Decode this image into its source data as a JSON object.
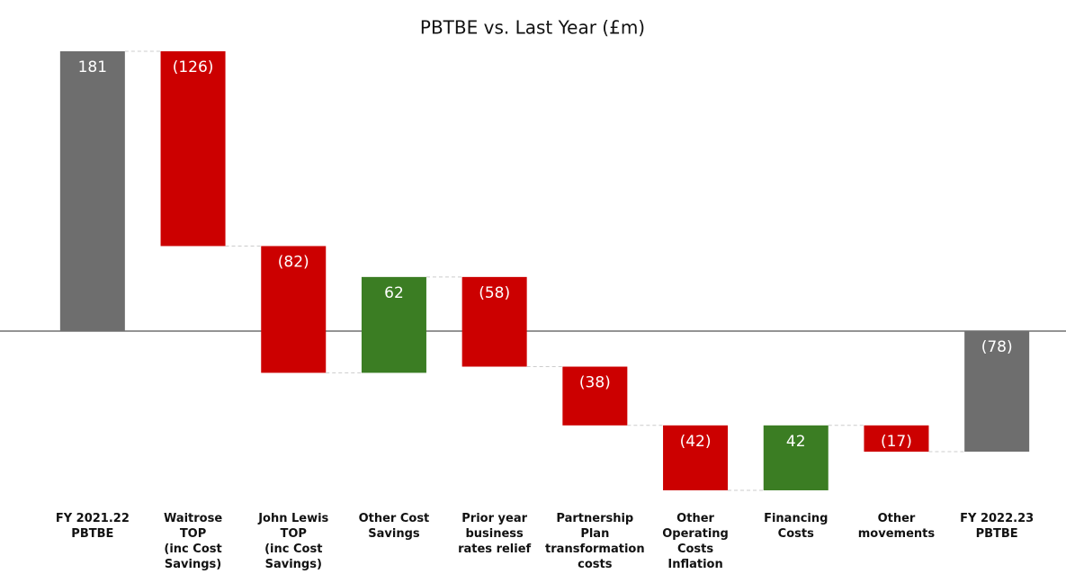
{
  "chart_data": {
    "type": "waterfall",
    "title": "PBTBE vs. Last Year (£m)",
    "categories": [
      "FY 2021.22\nPBTBE",
      "Waitrose\nTOP\n(inc Cost\nSavings)",
      "John Lewis\nTOP\n(inc Cost\nSavings)",
      "Other Cost\nSavings",
      "Prior year\nbusiness\nrates relief",
      "Partnership\nPlan\ntransformation\ncosts",
      "Other\nOperating\nCosts\nInflation",
      "Financing\nCosts",
      "Other\nmovements",
      "FY 2022.23\nPBTBE"
    ],
    "values": [
      181,
      -126,
      -82,
      62,
      -58,
      -38,
      -42,
      42,
      -17,
      -78
    ],
    "value_labels": [
      "181",
      "(126)",
      "(82)",
      "62",
      "(58)",
      "(38)",
      "(42)",
      "42",
      "(17)",
      "(78)"
    ],
    "is_total": [
      true,
      false,
      false,
      false,
      false,
      false,
      false,
      false,
      false,
      true
    ],
    "colors": {
      "total": "#6e6e6e",
      "increase": "#3b7d23",
      "decrease": "#cc0000"
    },
    "ylim": [
      -110,
      181
    ]
  }
}
